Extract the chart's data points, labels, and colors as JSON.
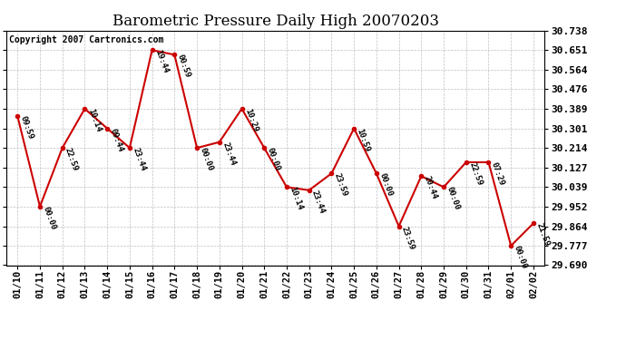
{
  "title": "Barometric Pressure Daily High 20070203",
  "copyright": "Copyright 2007 Cartronics.com",
  "dates": [
    "01/10",
    "01/11",
    "01/12",
    "01/13",
    "01/14",
    "01/15",
    "01/16",
    "01/17",
    "01/18",
    "01/19",
    "01/20",
    "01/21",
    "01/22",
    "01/23",
    "01/24",
    "01/25",
    "01/26",
    "01/27",
    "01/28",
    "01/29",
    "01/30",
    "01/31",
    "02/01",
    "02/02"
  ],
  "values": [
    30.356,
    29.952,
    30.214,
    30.389,
    30.301,
    30.214,
    30.651,
    30.63,
    30.214,
    30.24,
    30.389,
    30.214,
    30.039,
    30.025,
    30.1,
    30.301,
    30.1,
    29.864,
    30.088,
    30.039,
    30.15,
    30.15,
    29.777,
    29.877
  ],
  "labels": [
    "09:59",
    "00:00",
    "22:59",
    "10:14",
    "09:44",
    "23:44",
    "19:44",
    "00:59",
    "00:00",
    "23:44",
    "10:29",
    "00:00",
    "10:14",
    "23:44",
    "23:59",
    "10:59",
    "00:00",
    "23:59",
    "20:44",
    "00:00",
    "22:59",
    "07:29",
    "00:00",
    "21:59"
  ],
  "ylim": [
    29.69,
    30.738
  ],
  "yticks": [
    29.69,
    29.777,
    29.864,
    29.952,
    30.039,
    30.127,
    30.214,
    30.301,
    30.389,
    30.476,
    30.564,
    30.651,
    30.738
  ],
  "line_color": "#cc0000",
  "marker_color": "#cc0000",
  "bg_color": "#ffffff",
  "grid_color": "#c0c0c0",
  "label_fontsize": 6.5,
  "title_fontsize": 12,
  "copyright_fontsize": 7,
  "ytick_fontsize": 8,
  "xtick_fontsize": 7.5
}
